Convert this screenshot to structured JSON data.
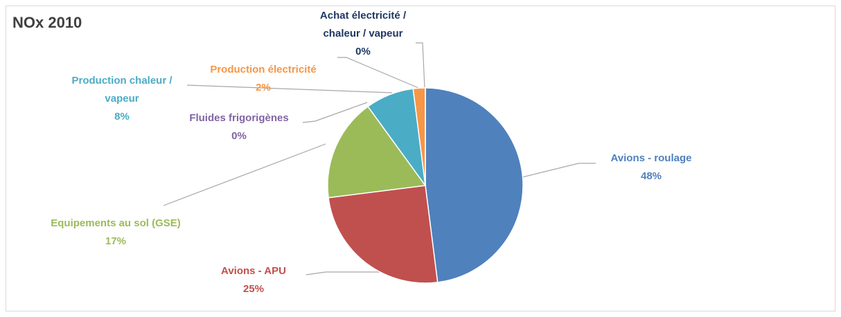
{
  "chart_data": {
    "type": "pie",
    "title": "NOx 2010",
    "categories": [
      "Avions - roulage",
      "Avions - APU",
      "Equipements au sol (GSE)",
      "Fluides frigorigènes",
      "Production chaleur / vapeur",
      "Production électricité",
      "Achat électricité / chaleur / vapeur"
    ],
    "values": [
      48,
      25,
      17,
      0,
      8,
      2,
      0
    ],
    "value_labels": [
      "48%",
      "25%",
      "17%",
      "0%",
      "8%",
      "2%",
      "0%"
    ],
    "colors": [
      "#4f81bd",
      "#c0504d",
      "#9bbb59",
      "#8064a2",
      "#4bacc6",
      "#f79646",
      "#1f497d"
    ]
  }
}
